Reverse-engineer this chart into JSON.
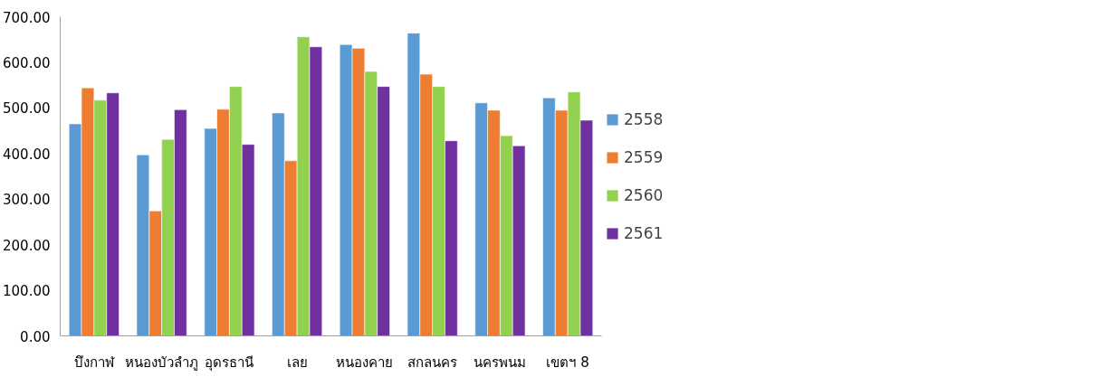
{
  "chart_data": {
    "type": "bar",
    "categories": [
      "บึงกาฬ",
      "หนองบัวลำภู",
      "อุดรธานี",
      "เลย",
      "หนองคาย",
      "สกลนคร",
      "นครพนม",
      "เขตฯ 8"
    ],
    "series": [
      {
        "name": "2558",
        "color": "#5b9bd5",
        "values": [
          465,
          397,
          455,
          489,
          639,
          664,
          511,
          522
        ]
      },
      {
        "name": "2559",
        "color": "#ed7d31",
        "values": [
          544,
          274,
          497,
          384,
          631,
          574,
          495,
          495
        ]
      },
      {
        "name": "2560",
        "color": "#92d050",
        "values": [
          517,
          431,
          547,
          656,
          580,
          547,
          439,
          535
        ]
      },
      {
        "name": "2561",
        "color": "#7030a0",
        "values": [
          533,
          496,
          420,
          634,
          547,
          428,
          417,
          473
        ]
      }
    ],
    "ylim": [
      0,
      700
    ],
    "yticks": [
      {
        "value": 0,
        "label": "0.00"
      },
      {
        "value": 100,
        "label": "100.00"
      },
      {
        "value": 200,
        "label": "200.00"
      },
      {
        "value": 300,
        "label": "300.00"
      },
      {
        "value": 400,
        "label": "400.00"
      },
      {
        "value": 500,
        "label": "500.00"
      },
      {
        "value": 600,
        "label": "600.00"
      },
      {
        "value": 700,
        "label": "700.00"
      }
    ],
    "grid": false,
    "legend": "right"
  }
}
